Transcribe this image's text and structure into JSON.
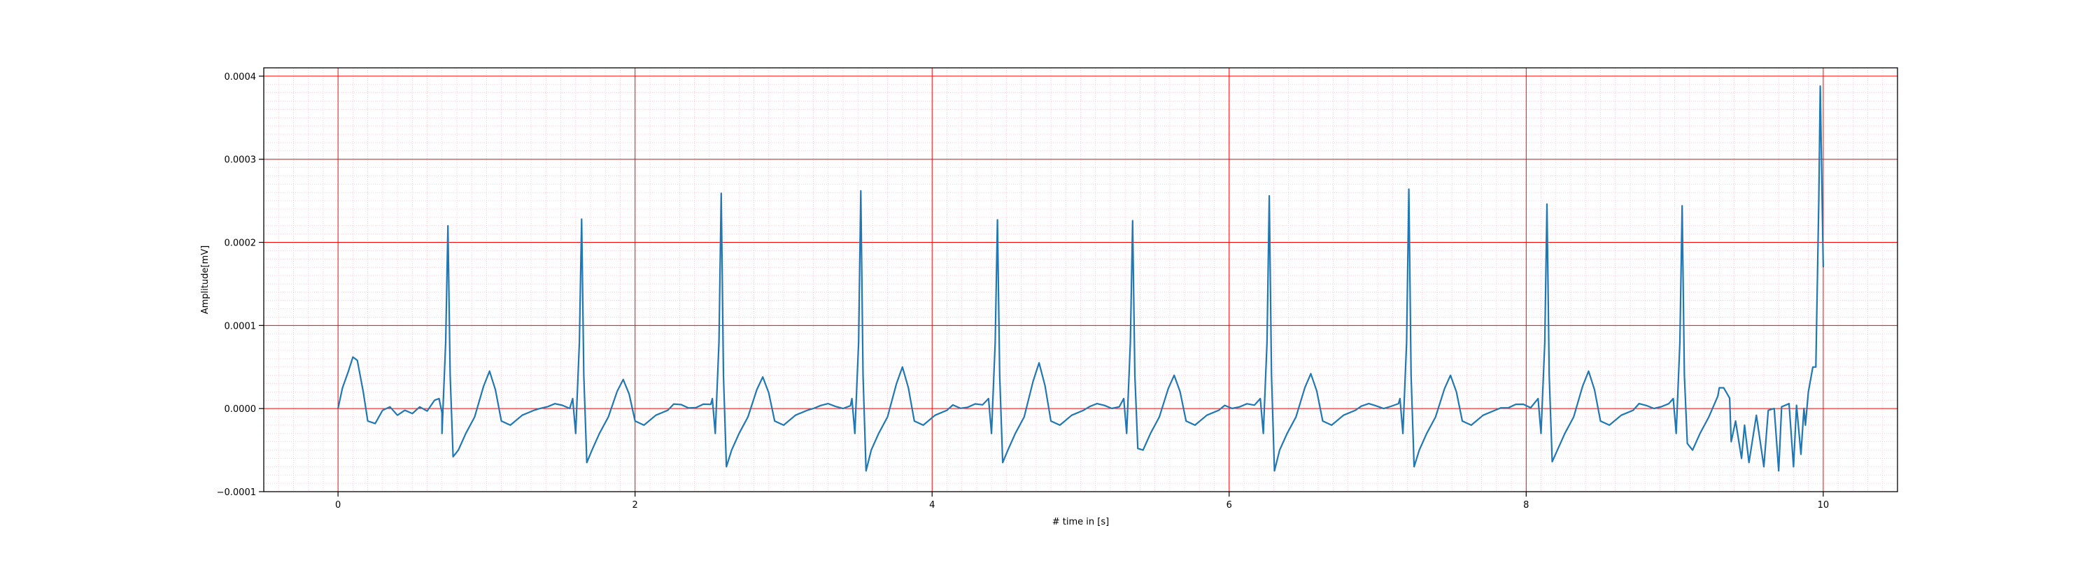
{
  "chart_data": {
    "type": "line",
    "title": "",
    "xlabel": "# time in [s]",
    "ylabel": "Amplitude[mV]",
    "xlim": [
      -0.5,
      10.5
    ],
    "ylim": [
      -0.0001,
      0.00041
    ],
    "grid": {
      "major": true,
      "minor": true,
      "major_color": "#ff0000",
      "minor_color": "#ffc0cb"
    },
    "line_color": "#1f77b4",
    "x_ticks": [
      0,
      2,
      4,
      6,
      8,
      10
    ],
    "x_tick_labels": [
      "0",
      "2",
      "4",
      "6",
      "8",
      "10"
    ],
    "y_ticks": [
      -0.0001,
      0.0,
      0.0001,
      0.0002,
      0.0003,
      0.0004
    ],
    "y_tick_labels": [
      "−0.0001",
      "0.0000",
      "0.0001",
      "0.0002",
      "0.0003",
      "0.0004"
    ],
    "beats": [
      {
        "t": 0.74,
        "r": 0.00022,
        "s": -5.8e-05,
        "t_wave": 4.5e-05
      },
      {
        "t": 1.64,
        "r": 0.000228,
        "s": -6.5e-05,
        "t_wave": 3.5e-05
      },
      {
        "t": 2.58,
        "r": 0.000259,
        "s": -7e-05,
        "t_wave": 3.8e-05
      },
      {
        "t": 3.52,
        "r": 0.000262,
        "s": -7.5e-05,
        "t_wave": 5e-05
      },
      {
        "t": 4.44,
        "r": 0.000227,
        "s": -6.5e-05,
        "t_wave": 5.5e-05
      },
      {
        "t": 5.35,
        "r": 0.000226,
        "s": -4.8e-05,
        "t_wave": 4e-05
      },
      {
        "t": 6.27,
        "r": 0.000256,
        "s": -7.5e-05,
        "t_wave": 4.2e-05
      },
      {
        "t": 7.21,
        "r": 0.000264,
        "s": -7e-05,
        "t_wave": 4e-05
      },
      {
        "t": 8.14,
        "r": 0.000246,
        "s": -6.4e-05,
        "t_wave": 4.5e-05
      },
      {
        "t": 9.05,
        "r": 0.000244,
        "s": -4.2e-05,
        "t_wave": 2.5e-05
      },
      {
        "t": 9.98,
        "r": 0.000388,
        "s": 0.00017,
        "t_wave": 0.0
      }
    ],
    "baseline_points": [
      [
        0.0,
        0.0
      ],
      [
        0.03,
        2.5e-05
      ],
      [
        0.07,
        4.5e-05
      ],
      [
        0.1,
        6.2e-05
      ],
      [
        0.13,
        5.8e-05
      ],
      [
        0.17,
        2e-05
      ],
      [
        0.2,
        -1.5e-05
      ],
      [
        0.25,
        -1.8e-05
      ],
      [
        0.3,
        -2e-06
      ],
      [
        0.35,
        2e-06
      ],
      [
        0.4,
        -8e-06
      ],
      [
        0.45,
        -2e-06
      ],
      [
        0.5,
        -6e-06
      ],
      [
        0.55,
        2e-06
      ],
      [
        0.6,
        -3e-06
      ],
      [
        0.65,
        1e-05
      ],
      [
        0.7,
        -5e-06
      ],
      [
        9.3,
        2.5e-05
      ],
      [
        9.38,
        -4e-05
      ],
      [
        9.45,
        -6e-05
      ],
      [
        9.5,
        -6.5e-05
      ],
      [
        9.6,
        -7e-05
      ],
      [
        9.7,
        -7.5e-05
      ],
      [
        9.8,
        -7e-05
      ],
      [
        9.85,
        -5.5e-05
      ],
      [
        9.88,
        -2e-05
      ],
      [
        9.9,
        2e-05
      ],
      [
        9.93,
        5e-05
      ],
      [
        10.0,
        0.00017
      ]
    ]
  }
}
